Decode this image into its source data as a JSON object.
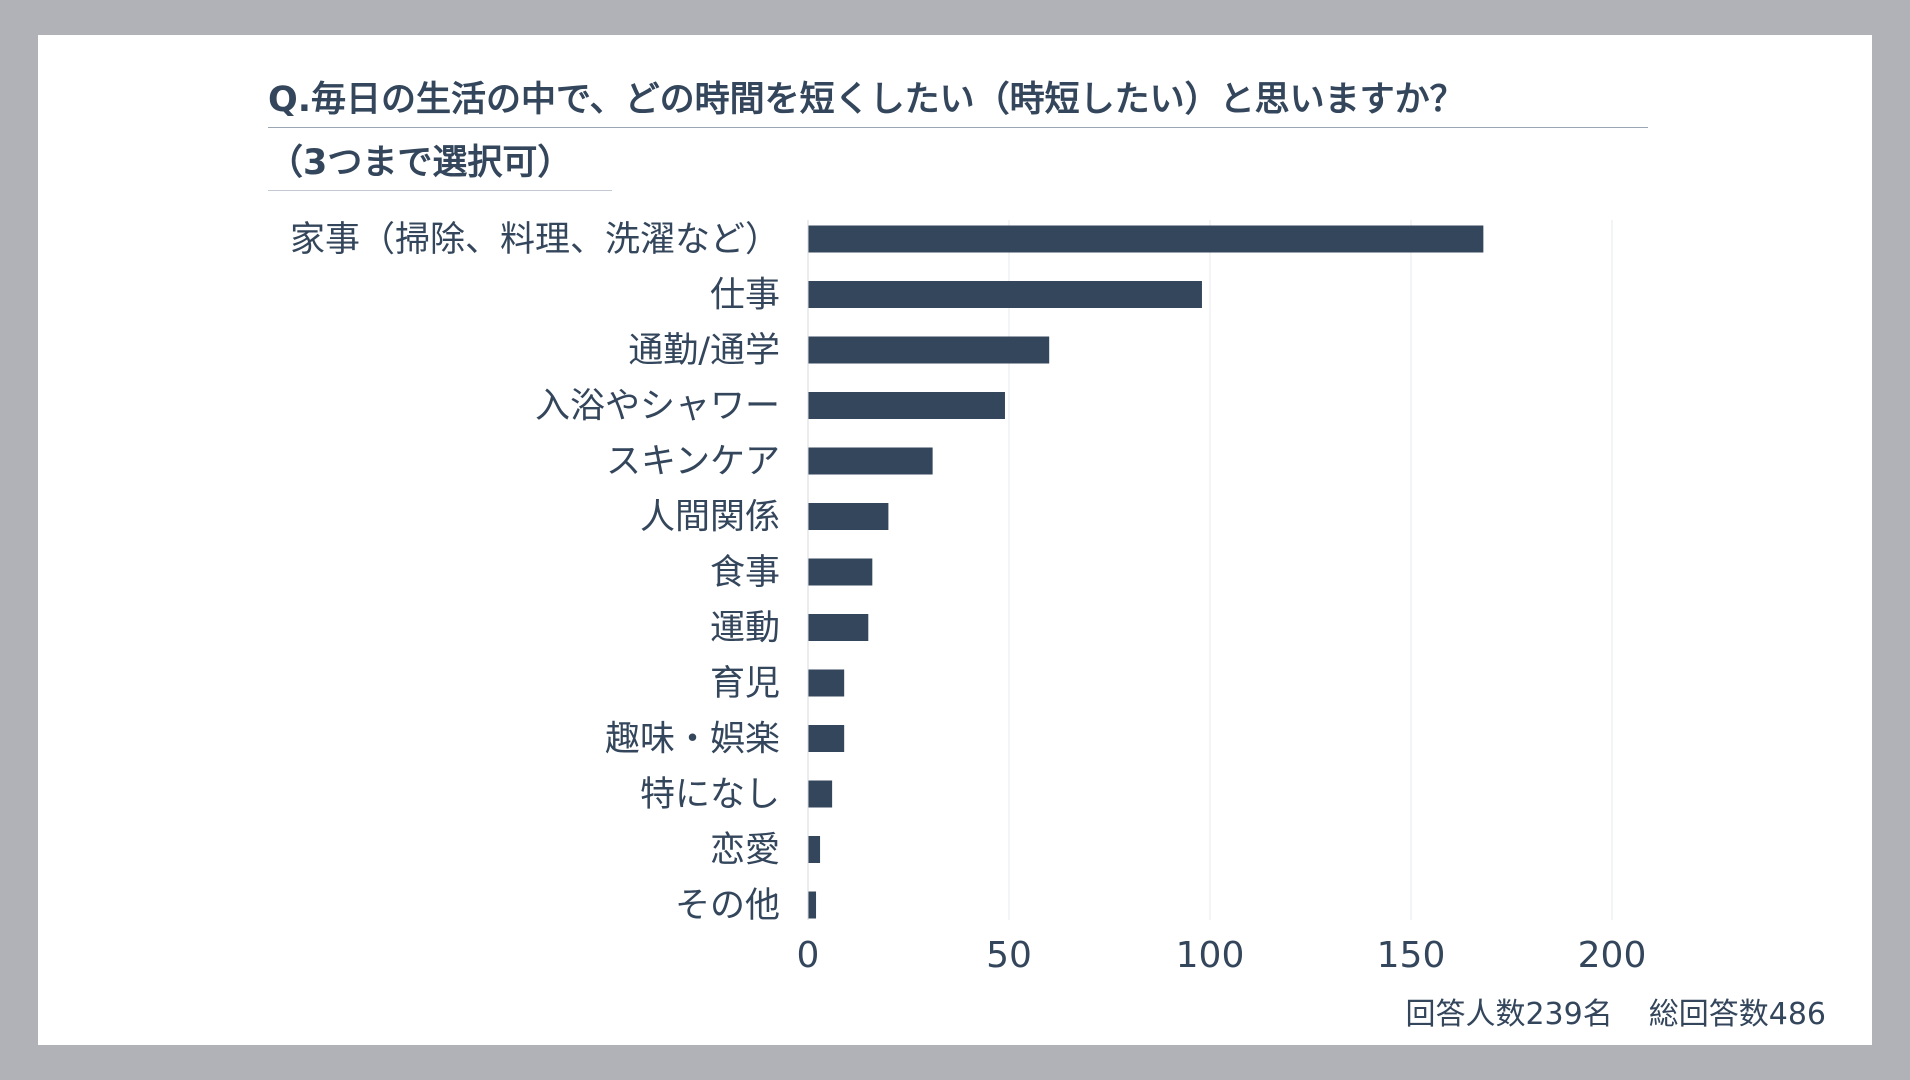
{
  "title": {
    "line1": "Q.毎日の生活の中で、どの時間を短くしたい（時短したい）と思いますか？",
    "line2": "（3つまで選択可）"
  },
  "footnote": {
    "respondents": "回答人数239名",
    "total_answers": "総回答数486"
  },
  "colors": {
    "bar": "#34465c",
    "text": "#34465c",
    "grid": "#e6e8eb",
    "background": "#b1b2b7",
    "card": "#ffffff"
  },
  "chart_data": {
    "type": "bar",
    "orientation": "horizontal",
    "title": "Q.毎日の生活の中で、どの時間を短くしたい（時短したい）と思いますか？（3つまで選択可）",
    "categories": [
      "家事（掃除、料理、洗濯など）",
      "仕事",
      "通勤/通学",
      "入浴やシャワー",
      "スキンケア",
      "人間関係",
      "食事",
      "運動",
      "育児",
      "趣味・娯楽",
      "特になし",
      "恋愛",
      "その他"
    ],
    "values": [
      168,
      98,
      60,
      49,
      31,
      20,
      16,
      15,
      9,
      9,
      6,
      3,
      2
    ],
    "xlim": [
      0,
      200
    ],
    "xticks": [
      0,
      50,
      100,
      150,
      200
    ],
    "xlabel": "",
    "ylabel": "",
    "grid": true,
    "legend": "none"
  }
}
